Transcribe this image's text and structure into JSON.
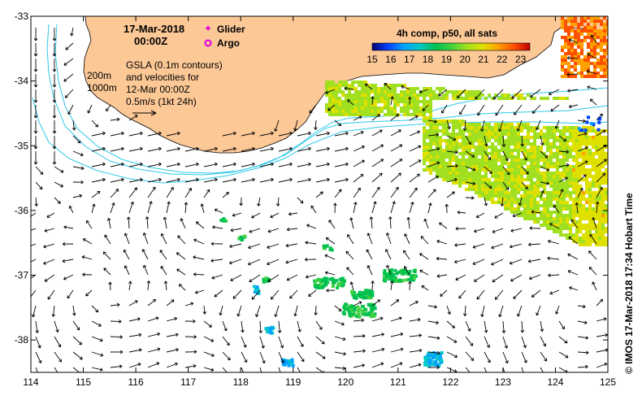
{
  "header": {
    "date": "17-Mar-2018",
    "time": "00:00Z"
  },
  "legend": {
    "glider_label": "Glider",
    "argo_label": "Argo",
    "glider_color": "#e000e0",
    "argo_color": "#e000e0"
  },
  "depth_labels": [
    "200m",
    "1000m"
  ],
  "notes": {
    "line1": "GSLA (0.1m contours)",
    "line2": "and velocities for",
    "line3": "12-Mar 00:00Z",
    "line4": "0.5m/s (1kt 24h)"
  },
  "colorbar": {
    "title": "4h comp, p50, all sats",
    "ticks": [
      "15",
      "16",
      "17",
      "18",
      "19",
      "20",
      "21",
      "22",
      "23"
    ],
    "min": 15,
    "max": 23.5,
    "colors": [
      "#00006e",
      "#0040ff",
      "#00a0ff",
      "#00c8c8",
      "#00c050",
      "#40d040",
      "#a0e020",
      "#e0e000",
      "#ffa000",
      "#ff5000",
      "#c00000"
    ]
  },
  "axes": {
    "x_ticks": [
      "114",
      "115",
      "116",
      "117",
      "118",
      "119",
      "120",
      "121",
      "122",
      "123",
      "124",
      "125"
    ],
    "y_ticks": [
      "-33",
      "-34",
      "-35",
      "-36",
      "-37",
      "-38"
    ],
    "lon_range": [
      114,
      125
    ],
    "lat_range": [
      -33,
      -38.5
    ]
  },
  "side_label": "© IMOS 17-Mar-2018 17:34 Hobart Time",
  "colors": {
    "land": "#fcc896",
    "bathy": "#2ec8e8",
    "arrow": "#000000"
  }
}
